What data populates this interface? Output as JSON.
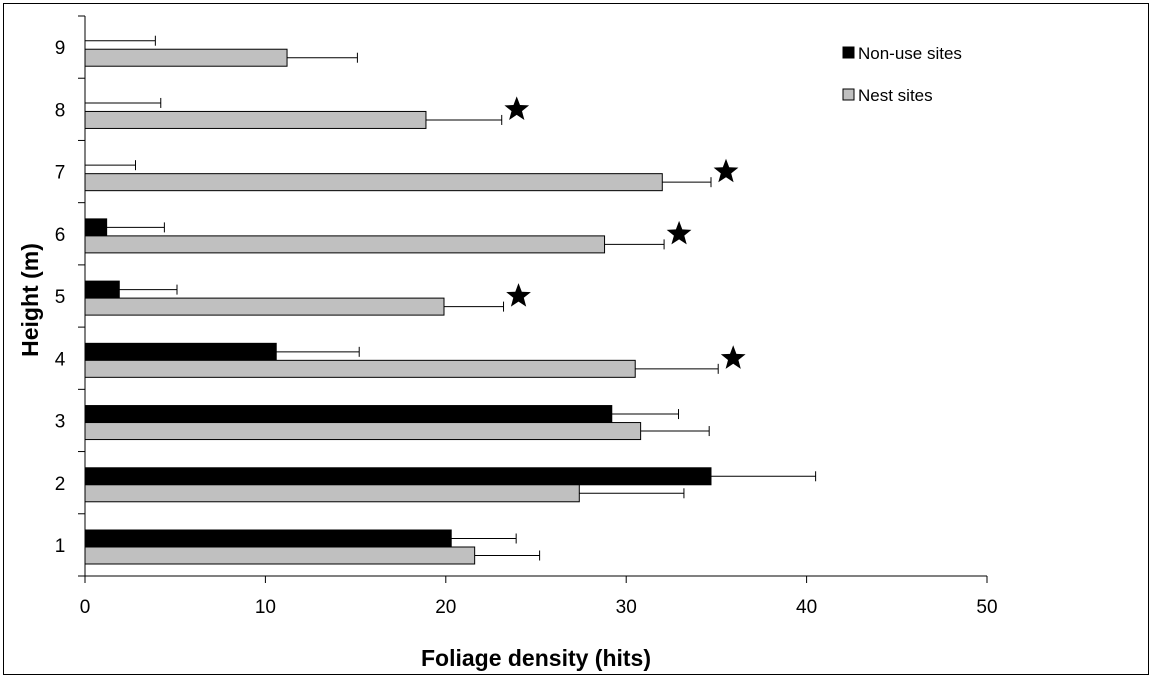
{
  "chart_data": {
    "type": "bar",
    "orientation": "horizontal",
    "xlabel": "Foliage density (hits)",
    "ylabel": "Height (m)",
    "xlim": [
      0,
      50
    ],
    "xticks": [
      "0",
      "10",
      "20",
      "30",
      "40",
      "50"
    ],
    "categories": [
      "1",
      "2",
      "3",
      "4",
      "5",
      "6",
      "7",
      "8",
      "9"
    ],
    "grid": false,
    "legend_position": "top-right",
    "series": [
      {
        "name": "Non-use sites",
        "color": "#000000",
        "values": [
          20.3,
          34.7,
          29.2,
          10.6,
          1.9,
          1.2,
          0,
          0,
          0
        ],
        "error": [
          3.6,
          5.8,
          3.7,
          4.6,
          3.2,
          3.2,
          2.8,
          4.2,
          3.9
        ]
      },
      {
        "name": "Nest sites",
        "color": "#c0c0c0",
        "values": [
          21.6,
          27.4,
          30.8,
          30.5,
          19.9,
          28.8,
          32.0,
          18.9,
          11.2
        ],
        "error": [
          3.6,
          5.8,
          3.8,
          4.6,
          3.3,
          3.3,
          2.7,
          4.2,
          3.9
        ]
      }
    ],
    "significance_markers": [
      "4",
      "5",
      "6",
      "7",
      "8"
    ],
    "marker_symbol": "★"
  }
}
